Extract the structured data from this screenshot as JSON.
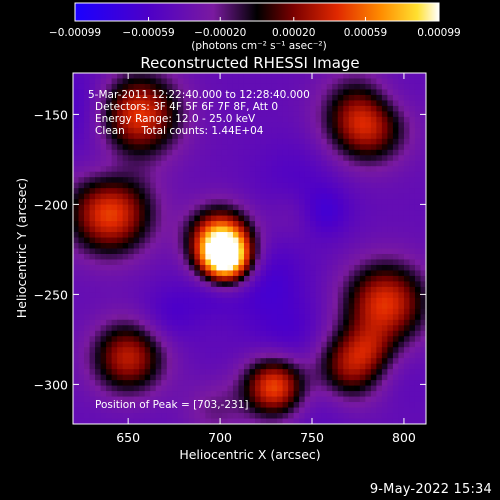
{
  "chart_data": {
    "type": "heatmap",
    "title": "Reconstructed RHESSI Image",
    "xlabel": "Heliocentric X (arcsec)",
    "ylabel": "Heliocentric Y (arcsec)",
    "xlim": [
      620,
      812
    ],
    "ylim": [
      -322,
      -127
    ],
    "xticks": [
      650,
      700,
      750,
      800
    ],
    "yticks": [
      -150,
      -200,
      -250,
      -300
    ],
    "colorbar": {
      "ticks": [
        "-0.00099",
        "-0.00059",
        "-0.00020",
        "0.00020",
        "0.00059",
        "0.00099"
      ],
      "tick_values": [
        -0.00099,
        -0.00059,
        -0.0002,
        0.0002,
        0.00059,
        0.00099
      ],
      "range": [
        -0.00099,
        0.00099
      ],
      "units": "(photons cm⁻² s⁻¹ asec⁻²)",
      "colormap": "blue-purple-red-orange-yellow-white"
    },
    "annotations": [
      "5-Mar-2011 12:22:40.000 to 12:28:40.000",
      "Detectors: 3F 4F 5F 6F 7F 8F, Att 0",
      "Energy Range: 12.0 - 25.0 keV",
      "Clean     Total counts: 1.44E+04"
    ],
    "peak_label": "Position of Peak = [703,-231]",
    "peak": {
      "x": 703,
      "y": -231
    },
    "grid": false,
    "sources": [
      {
        "x": 703,
        "y": -231,
        "peak": 0.00099,
        "sigma": 10
      },
      {
        "x": 700,
        "y": -219,
        "peak": 0.00065,
        "sigma": 12
      },
      {
        "x": 730,
        "y": -301,
        "peak": 0.0006,
        "sigma": 12
      },
      {
        "x": 655,
        "y": -150,
        "peak": 0.0005,
        "sigma": 16
      },
      {
        "x": 640,
        "y": -205,
        "peak": 0.0005,
        "sigma": 16
      },
      {
        "x": 780,
        "y": -155,
        "peak": 0.0004,
        "sigma": 15
      },
      {
        "x": 790,
        "y": -255,
        "peak": 0.00045,
        "sigma": 16
      },
      {
        "x": 770,
        "y": -290,
        "peak": 0.00035,
        "sigma": 14
      },
      {
        "x": 650,
        "y": -285,
        "peak": 0.00035,
        "sigma": 14
      }
    ]
  },
  "footer": {
    "date": "9-May-2022 15:34"
  }
}
